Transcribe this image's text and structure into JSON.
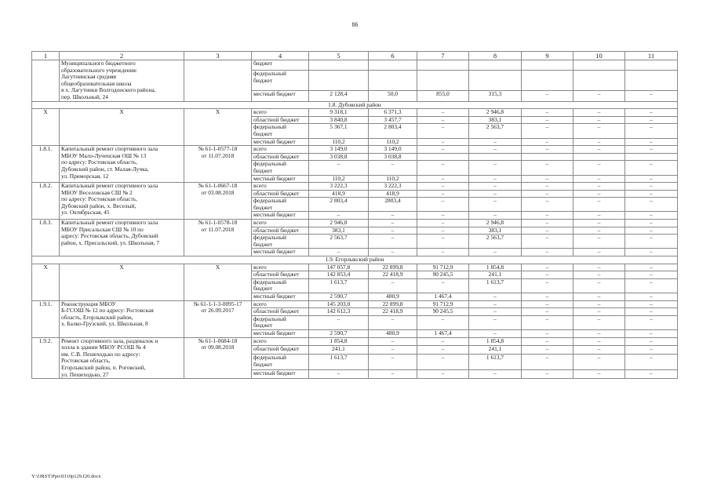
{
  "page_number": "86",
  "header": [
    "1",
    "2",
    "3",
    "4",
    "5",
    "6",
    "7",
    "8",
    "9",
    "10",
    "11"
  ],
  "rows": [
    {
      "num": "",
      "name": "Муниципального бюджетного\nобразовательного учреждения:\nЛагутнинская средняя\nобщеобразовательная школа\nв х. Лагутники Волгодонского района,\nпер. Школьный, 24",
      "contract": "",
      "lines": [
        {
          "type": "бюджет",
          "values": [
            "",
            "",
            "",
            "",
            "",
            "",
            ""
          ]
        },
        {
          "type": "федеральный бюджет",
          "values": [
            "",
            "",
            "",
            "",
            "",
            "",
            ""
          ]
        },
        {
          "type": "местный бюджет",
          "values": [
            "2 128,4",
            "50,0",
            "855,0",
            "315,3",
            "–",
            "–",
            "–"
          ]
        }
      ]
    },
    {
      "section": "1.8. Дубовский район"
    },
    {
      "num": "X",
      "name": "X",
      "contract": "X",
      "center": true,
      "lines": [
        {
          "type": "всего",
          "values": [
            "9 318,1",
            "6 371,3",
            "–",
            "2 946,8",
            "–",
            "–",
            "–"
          ]
        },
        {
          "type": "областной бюджет",
          "values": [
            "3 840,8",
            "3 457,7",
            "–",
            "383,1",
            "–",
            "–",
            "–"
          ]
        },
        {
          "type": "федеральный бюджет",
          "values": [
            "5 367,1",
            "2 803,4",
            "–",
            "2 563,7",
            "–",
            "–",
            "–"
          ]
        },
        {
          "type": "местный бюджет",
          "values": [
            "110,2",
            "110,2",
            "–",
            "–",
            "–",
            "–",
            "–"
          ]
        }
      ]
    },
    {
      "num": "1.8.1.",
      "name": "Капитальный ремонт спортивного зала\nМБОУ Мало-Лученская ОШ № 13\nпо адресу: Ростовская область,\nДубовский район, ст. Малая-Лучка,\nул. Приморская, 12",
      "contract": "№ 61-1-0577-18\nот 11.07.2018",
      "lines": [
        {
          "type": "всего",
          "values": [
            "3 149,0",
            "3 149,0",
            "–",
            "–",
            "–",
            "–",
            "–"
          ]
        },
        {
          "type": "областной бюджет",
          "values": [
            "3 038,8",
            "3 038,8",
            "",
            "",
            "",
            "",
            ""
          ]
        },
        {
          "type": "федеральный бюджет",
          "values": [
            "–",
            "–",
            "–",
            "–",
            "–",
            "–",
            "–"
          ]
        },
        {
          "type": "местный бюджет",
          "values": [
            "110,2",
            "110,2",
            "–",
            "–",
            "–",
            "–",
            "–"
          ]
        }
      ]
    },
    {
      "num": "1.8.2.",
      "name": "Капитальный ремонт спортивного зала\nМБОУ Веселовская СШ № 2\nпо адресу: Ростовская область,\nДубовский район, х. Веселый,\nул. Октябрьская, 45",
      "contract": "№ 61-1-0667-18\nот 03.08.2018",
      "lines": [
        {
          "type": "всего",
          "values": [
            "3 222,3",
            "3 222,3",
            "–",
            "–",
            "–",
            "–",
            "–"
          ]
        },
        {
          "type": "областной бюджет",
          "values": [
            "418,9",
            "418,9",
            "–",
            "–",
            "–",
            "–",
            "–"
          ]
        },
        {
          "type": "федеральный бюджет",
          "values": [
            "2 803,4",
            "2803,4",
            "–",
            "–",
            "–",
            "–",
            "–"
          ]
        },
        {
          "type": "местный бюджет",
          "values": [
            "–",
            "–",
            "–",
            "–",
            "–",
            "–",
            "–"
          ]
        }
      ]
    },
    {
      "num": "1.8.3.",
      "name": "Капитальный ремонт спортивного зала\nМБОУ Присальская СШ № 10 по\nадресу: Ростовская область, Дубовский\nрайон, х. Присальский, ул. Школьная, 7",
      "contract": "№ 61-1-0578-18\nот 11.07.2018",
      "lines": [
        {
          "type": "всего",
          "values": [
            "2 946,8",
            "–",
            "–",
            "2 946,8",
            "–",
            "–",
            "–"
          ]
        },
        {
          "type": "областной бюджет",
          "values": [
            "383,1",
            "–",
            "–",
            "383,1",
            "–",
            "–",
            "–"
          ]
        },
        {
          "type": "федеральный бюджет",
          "values": [
            "2 563,7",
            "–",
            "–",
            "2 563,7",
            "–",
            "–",
            "–"
          ]
        },
        {
          "type": "местный бюджет",
          "values": [
            "–",
            "–",
            "–",
            "–",
            "–",
            "–",
            "–"
          ]
        }
      ]
    },
    {
      "section": "1.9. Егорлыкский район"
    },
    {
      "num": "X",
      "name": "X",
      "contract": "X",
      "center": true,
      "lines": [
        {
          "type": "всего",
          "values": [
            "147 057,8",
            "22 899,8",
            "91 712,9",
            "1 854,8",
            "–",
            "–",
            "–"
          ]
        },
        {
          "type": "областной бюджет",
          "values": [
            "142 853,4",
            "22 418,9",
            "90 245,5",
            "241,1",
            "–",
            "–",
            "–"
          ]
        },
        {
          "type": "федеральный бюджет",
          "values": [
            "1 613,7",
            "–",
            "–",
            "1 613,7",
            "–",
            "–",
            "–"
          ]
        },
        {
          "type": "местный бюджет",
          "values": [
            "2 590,7",
            "480,9",
            "1 467,4",
            "–",
            "–",
            "–",
            "–"
          ]
        }
      ]
    },
    {
      "num": "1.9.1.",
      "name": "Реконструкция МБОУ\nБ-ГСОШ № 12 по адресу: Ростовская\nобласть, Егорлыкский район,\nх. Балко-Грузский, ул. Школьная, 8",
      "contract": "№ 61-1-1-3-0095-17\nот 26.09.2017",
      "lines": [
        {
          "type": "всего",
          "values": [
            "145 203,0",
            "22 899,8",
            "91 712,9",
            "–",
            "–",
            "–",
            "–"
          ]
        },
        {
          "type": "областной бюджет",
          "values": [
            "142 612,3",
            "22 418,9",
            "90 245,5",
            "–",
            "–",
            "–",
            "–"
          ]
        },
        {
          "type": "федеральный бюджет",
          "values": [
            "–",
            "–",
            "–",
            "–",
            "–",
            "–",
            "–"
          ]
        },
        {
          "type": "местный бюджет",
          "values": [
            "2 590,7",
            "480,9",
            "1 467,4",
            "–",
            "–",
            "–",
            "–"
          ]
        }
      ]
    },
    {
      "num": "1.9.2.",
      "name": "Ремонт спортивного зала, раздевалок и\nхолла в здании МБОУ РСОШ № 4\nим. С.В. Пешеходько по адресу:\nРостовская область,\nЕгорлыкский район, п. Роговский,\nул. Пешеходько, 27",
      "contract": "№ 61-1-0684-18\nот 09.08.2018",
      "lines": [
        {
          "type": "всего",
          "values": [
            "1 854,8",
            "–",
            "–",
            "1 854,8",
            "–",
            "–",
            "–"
          ]
        },
        {
          "type": "областной бюджет",
          "values": [
            "241,1",
            "–",
            "–",
            "241,1",
            "–",
            "–",
            "–"
          ]
        },
        {
          "type": "федеральный бюджет",
          "values": [
            "1 613,7",
            "–",
            "–",
            "1 613,7",
            "–",
            "–",
            "–"
          ]
        },
        {
          "type": "местный бюджет",
          "values": [
            "–",
            "–",
            "–",
            "–",
            "–",
            "–",
            "–"
          ]
        }
      ]
    }
  ],
  "footer": "Y:\\ORST\\Ppo\\0310p129.f20.docx"
}
